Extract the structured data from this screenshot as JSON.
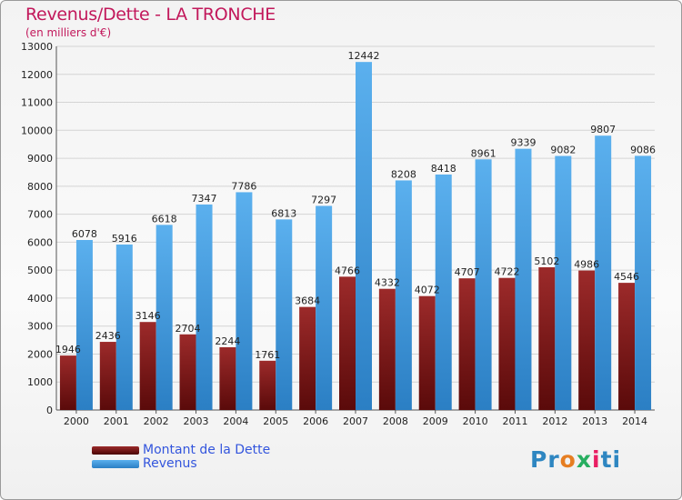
{
  "title": "Revenus/Dette - LA TRONCHE",
  "subtitle": "(en milliers d'€)",
  "brand": "Proxiti",
  "colors": {
    "dette": "#7a1a1a",
    "revenus": "#4aa3e6",
    "title": "#c2185b",
    "legend_text": "#3355dd"
  },
  "chart_data": {
    "type": "bar",
    "categories": [
      "2000",
      "2001",
      "2002",
      "2003",
      "2004",
      "2005",
      "2006",
      "2007",
      "2008",
      "2009",
      "2010",
      "2011",
      "2012",
      "2013",
      "2014"
    ],
    "series": [
      {
        "name": "Montant de la Dette",
        "color": "#7a1a1a",
        "values": [
          1946,
          2436,
          3146,
          2704,
          2244,
          1761,
          3684,
          4766,
          4332,
          4072,
          4707,
          4722,
          5102,
          4986,
          4546
        ],
        "labels": [
          "1946",
          "2436",
          "3146",
          "2704",
          "2244",
          "1761",
          "3684",
          "4766",
          "4332",
          "4072",
          "4707",
          "4722",
          "5102",
          "4986",
          "4546"
        ]
      },
      {
        "name": "Revenus",
        "color": "#4aa3e6",
        "values": [
          6078,
          5916,
          6618,
          7347,
          7786,
          6813,
          7297,
          12442,
          8208,
          8418,
          8961,
          9339,
          9082,
          9807,
          9086
        ],
        "labels": [
          "6078",
          "5916",
          "6618",
          "7347",
          "7786",
          "6813",
          "7297",
          "12442",
          "8208",
          "8418",
          "8961",
          "9339",
          "9082",
          "9807",
          "9086"
        ]
      }
    ],
    "yticks": [
      "0",
      "1000",
      "2000",
      "3000",
      "4000",
      "5000",
      "6000",
      "7000",
      "8000",
      "9000",
      "10000",
      "11000",
      "12000",
      "13000"
    ],
    "ylim": [
      0,
      13000
    ],
    "grid": true,
    "legend": "bottom-left"
  }
}
